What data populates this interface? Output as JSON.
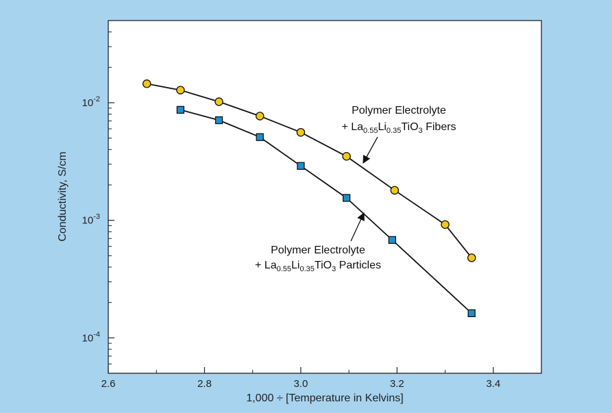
{
  "chart_data": {
    "type": "line",
    "xlabel": "1,000 ÷ [Temperature in Kelvins]",
    "ylabel": "Conductivity, S/cm",
    "xlim": [
      2.6,
      3.5
    ],
    "ylim": [
      5e-05,
      0.05
    ],
    "yscale": "log",
    "grid": false,
    "x_ticks": [
      "2.6",
      "2.8",
      "3.0",
      "3.2",
      "3.4"
    ],
    "y_ticks": [
      {
        "base": "10",
        "exp": "-2"
      },
      {
        "base": "10",
        "exp": "-3"
      },
      {
        "base": "10",
        "exp": "-4"
      }
    ],
    "series": [
      {
        "marker": "circle",
        "color": "#f2c81a",
        "x": [
          2.68,
          2.75,
          2.83,
          2.915,
          3.0,
          3.095,
          3.195,
          3.3,
          3.355
        ],
        "y": [
          0.0145,
          0.0128,
          0.0102,
          0.0077,
          0.0056,
          0.0035,
          0.0018,
          0.00092,
          0.00048
        ]
      },
      {
        "marker": "square",
        "color": "#1d8fcf",
        "x": [
          2.75,
          2.83,
          2.915,
          3.0,
          3.095,
          3.19,
          3.355
        ],
        "y": [
          0.0087,
          0.0071,
          0.0051,
          0.0029,
          0.00155,
          0.00068,
          0.000162
        ]
      }
    ],
    "annotations": [
      {
        "line1": "Polymer Electrolyte",
        "line2_prefix": "+ La",
        "sub1": "0.55",
        "mid1": "Li",
        "sub2": "0.35",
        "mid2": "TiO",
        "sub3": "3",
        "line2_suffix": " Fibers"
      },
      {
        "line1": "Polymer Electrolyte",
        "line2_prefix": "+ La",
        "sub1": "0.55",
        "mid1": "Li",
        "sub2": "0.35",
        "mid2": "TiO",
        "sub3": "3",
        "line2_suffix": " Particles"
      }
    ]
  }
}
